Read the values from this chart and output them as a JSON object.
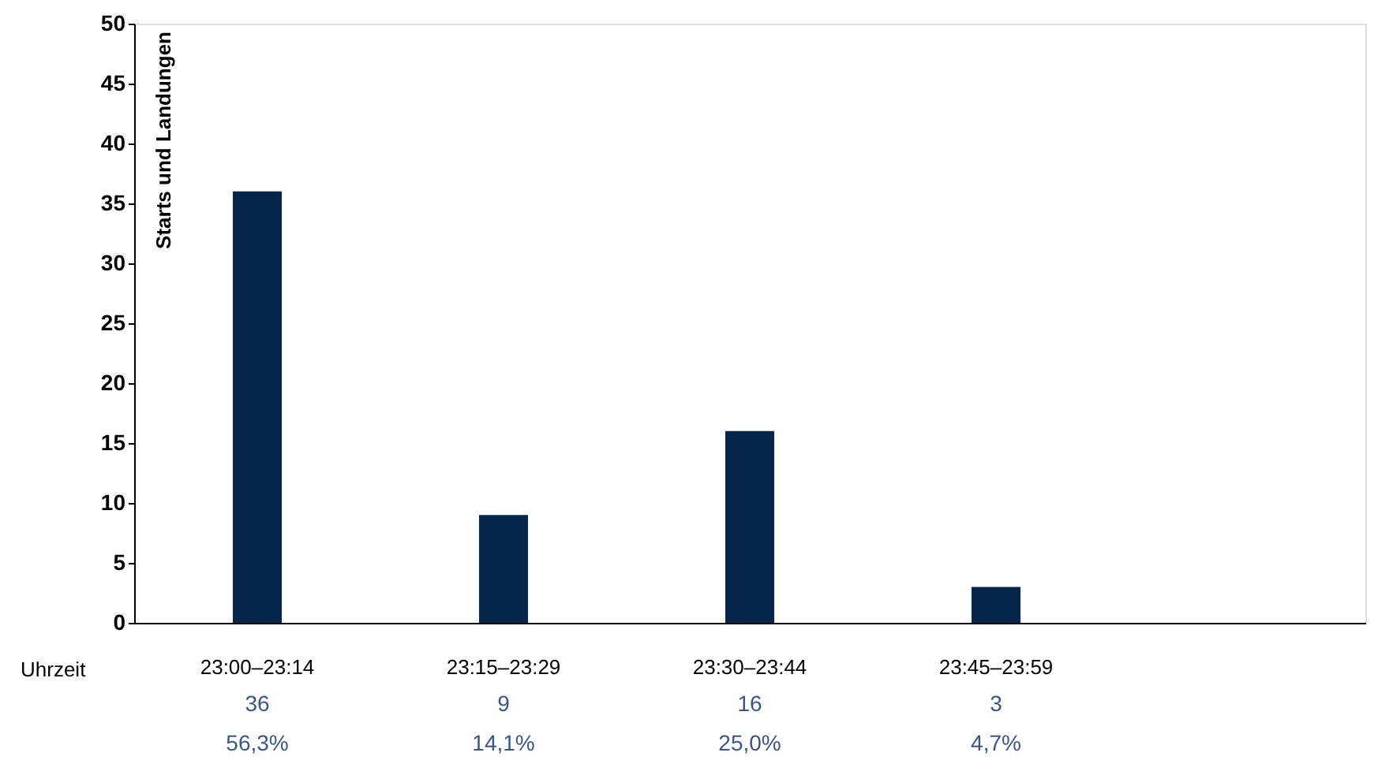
{
  "chart_data": {
    "type": "bar",
    "ylabel": "Starts und Landungen",
    "xlabel": "Uhrzeit",
    "categories": [
      "23:00–23:14",
      "23:15–23:29",
      "23:30–23:44",
      "23:45–23:59",
      null
    ],
    "values": [
      36,
      9,
      16,
      3,
      null
    ],
    "color": "#04244a",
    "ylim": [
      0,
      50
    ],
    "yticks": [
      0,
      5,
      10,
      15,
      20,
      25,
      30,
      35,
      40,
      45,
      50
    ],
    "grid": false,
    "data_labels": true,
    "annotations": [
      "56,3%",
      "14,1%",
      "25,0%",
      "4,7%"
    ]
  }
}
